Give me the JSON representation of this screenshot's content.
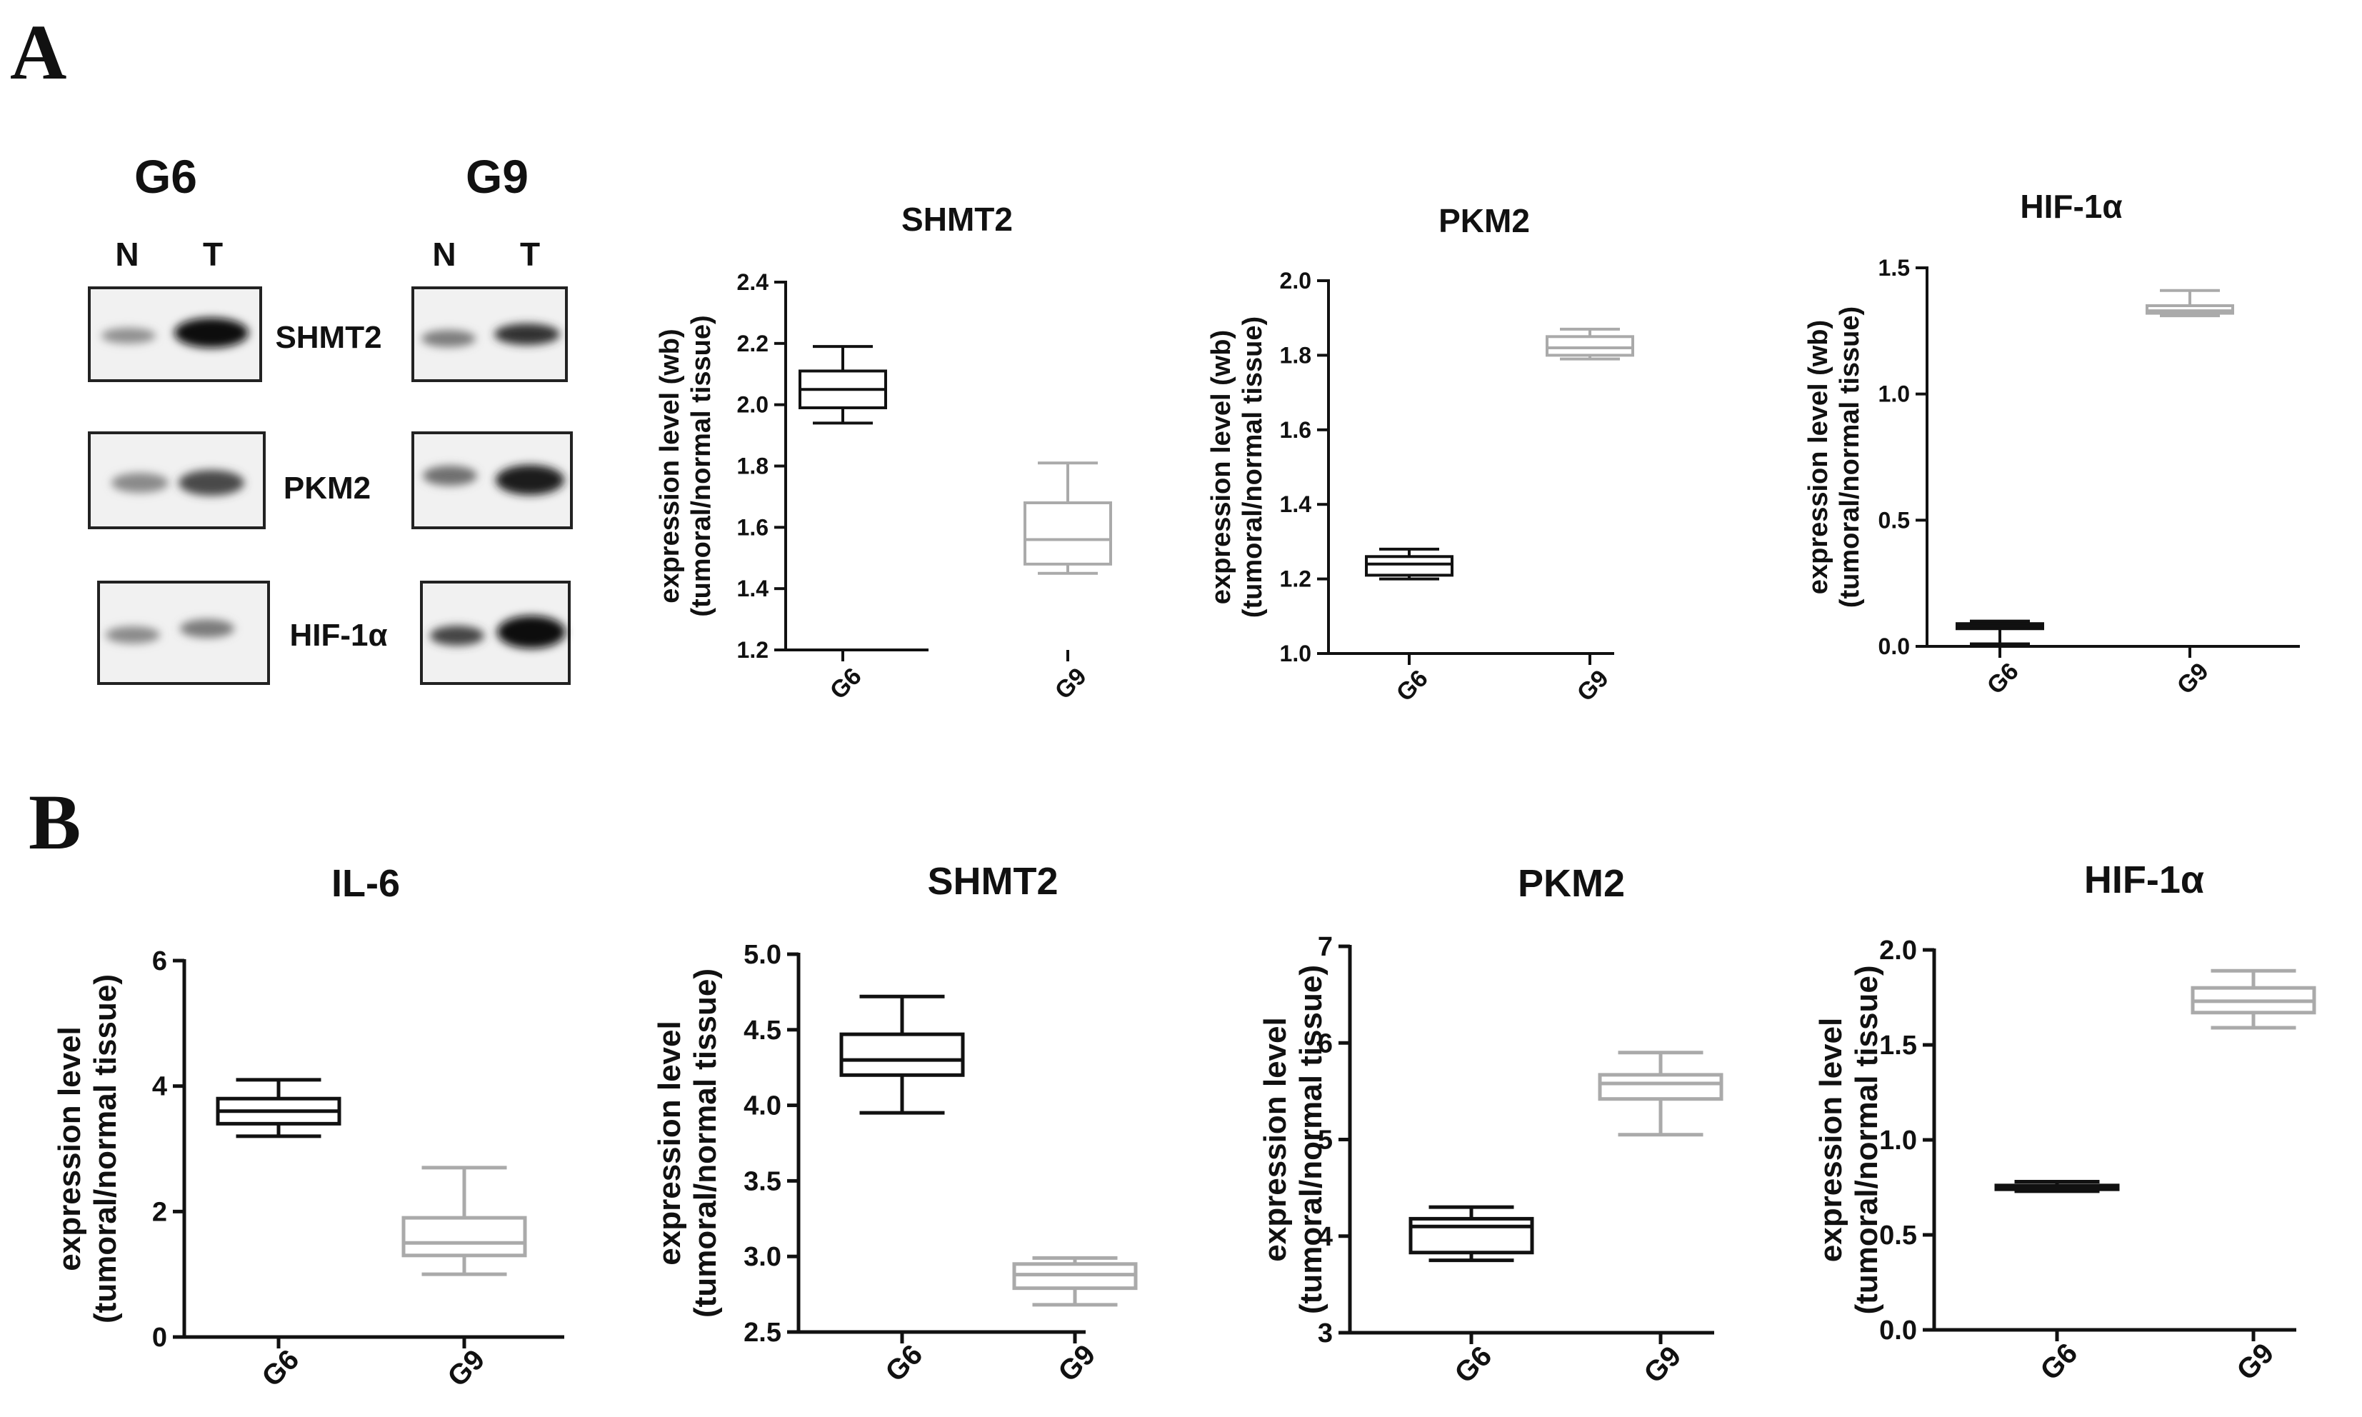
{
  "panels": {
    "a": "A",
    "b": "B"
  },
  "western_blot": {
    "groups": [
      {
        "label": "G6",
        "lanes": [
          "N",
          "T"
        ]
      },
      {
        "label": "G9",
        "lanes": [
          "N",
          "T"
        ]
      }
    ],
    "proteins": [
      "SHMT2",
      "PKM2",
      "HIF-1α"
    ]
  },
  "chart_data": [
    {
      "panel": "A",
      "type": "box",
      "title": "SHMT2",
      "ylabel": [
        "expression level (wb)",
        "(tumoral/normal tissue)"
      ],
      "ylim": [
        1.2,
        2.4
      ],
      "yticks": [
        1.2,
        1.4,
        1.6,
        1.8,
        2.0,
        2.2,
        2.4
      ],
      "ytick_labels": [
        "1.2",
        "1.4",
        "1.6",
        "1.8",
        "2.0",
        "2.2",
        "2.4"
      ],
      "categories": [
        "G6",
        "G9"
      ],
      "series": [
        {
          "name": "G6",
          "color": "#111111",
          "min": 1.94,
          "q1": 1.99,
          "median": 2.05,
          "q3": 2.11,
          "max": 2.19
        },
        {
          "name": "G9",
          "color": "#aaaaaa",
          "min": 1.45,
          "q1": 1.48,
          "median": 1.56,
          "q3": 1.68,
          "max": 1.81
        }
      ]
    },
    {
      "panel": "A",
      "type": "box",
      "title": "PKM2",
      "ylabel": [
        "expression level (wb)",
        "(tumoral/normal tissue)"
      ],
      "ylim": [
        1.0,
        2.0
      ],
      "yticks": [
        1.0,
        1.2,
        1.4,
        1.6,
        1.8,
        2.0
      ],
      "ytick_labels": [
        "1.0",
        "1.2",
        "1.4",
        "1.6",
        "1.8",
        "2.0"
      ],
      "categories": [
        "G6",
        "G9"
      ],
      "series": [
        {
          "name": "G6",
          "color": "#111111",
          "min": 1.2,
          "q1": 1.21,
          "median": 1.24,
          "q3": 1.26,
          "max": 1.28
        },
        {
          "name": "G9",
          "color": "#aaaaaa",
          "min": 1.79,
          "q1": 1.8,
          "median": 1.82,
          "q3": 1.85,
          "max": 1.87
        }
      ]
    },
    {
      "panel": "A",
      "type": "box",
      "title": "HIF-1α",
      "ylabel": [
        "expression level (wb)",
        "(tumoral/normal tissue)"
      ],
      "ylim": [
        0.0,
        1.5
      ],
      "yticks": [
        0.0,
        0.5,
        1.0,
        1.5
      ],
      "ytick_labels": [
        "0.0",
        "0.5",
        "1.0",
        "1.5"
      ],
      "categories": [
        "G6",
        "G9"
      ],
      "series": [
        {
          "name": "G6",
          "color": "#111111",
          "min": 0.01,
          "q1": 0.07,
          "median": 0.08,
          "q3": 0.09,
          "max": 0.1
        },
        {
          "name": "G9",
          "color": "#aaaaaa",
          "min": 1.31,
          "q1": 1.32,
          "median": 1.33,
          "q3": 1.35,
          "max": 1.41
        }
      ]
    },
    {
      "panel": "B",
      "type": "box",
      "title": "IL-6",
      "ylabel": [
        "expression level",
        "(tumoral/normal tissue)"
      ],
      "ylim": [
        0,
        6
      ],
      "yticks": [
        0,
        2,
        4,
        6
      ],
      "ytick_labels": [
        "0",
        "2",
        "4",
        "6"
      ],
      "categories": [
        "G6",
        "G9"
      ],
      "series": [
        {
          "name": "G6",
          "color": "#111111",
          "min": 3.2,
          "q1": 3.4,
          "median": 3.6,
          "q3": 3.8,
          "max": 4.1
        },
        {
          "name": "G9",
          "color": "#aaaaaa",
          "min": 1.0,
          "q1": 1.3,
          "median": 1.5,
          "q3": 1.9,
          "max": 2.7
        }
      ]
    },
    {
      "panel": "B",
      "type": "box",
      "title": "SHMT2",
      "ylabel": [
        "expression    level",
        "(tumoral/normal tissue)"
      ],
      "ylim": [
        2.5,
        5.0
      ],
      "yticks": [
        2.5,
        3.0,
        3.5,
        4.0,
        4.5,
        5.0
      ],
      "ytick_labels": [
        "2.5",
        "3.0",
        "3.5",
        "4.0",
        "4.5",
        "5.0"
      ],
      "categories": [
        "G6",
        "G9"
      ],
      "series": [
        {
          "name": "G6",
          "color": "#111111",
          "min": 3.95,
          "q1": 4.2,
          "median": 4.3,
          "q3": 4.47,
          "max": 4.72
        },
        {
          "name": "G9",
          "color": "#aaaaaa",
          "min": 2.68,
          "q1": 2.79,
          "median": 2.88,
          "q3": 2.95,
          "max": 2.99
        }
      ]
    },
    {
      "panel": "B",
      "type": "box",
      "title": "PKM2",
      "ylabel": [
        "expression    level",
        "(tumoral/normal tissue)"
      ],
      "ylim": [
        3,
        7
      ],
      "yticks": [
        3,
        4,
        5,
        6,
        7
      ],
      "ytick_labels": [
        "3",
        "4",
        "5",
        "6",
        "7"
      ],
      "categories": [
        "G6",
        "G9"
      ],
      "series": [
        {
          "name": "G6",
          "color": "#111111",
          "min": 3.75,
          "q1": 3.83,
          "median": 4.1,
          "q3": 4.18,
          "max": 4.3
        },
        {
          "name": "G9",
          "color": "#aaaaaa",
          "min": 5.05,
          "q1": 5.42,
          "median": 5.58,
          "q3": 5.67,
          "max": 5.9
        }
      ]
    },
    {
      "panel": "B",
      "type": "box",
      "title": "HIF-1α",
      "ylabel": [
        "expression    level",
        "(tumoral/normal tissue)"
      ],
      "ylim": [
        0.0,
        2.0
      ],
      "yticks": [
        0.0,
        0.5,
        1.0,
        1.5,
        2.0
      ],
      "ytick_labels": [
        "0.0",
        "0.5",
        "1.0",
        "1.5",
        "2.0"
      ],
      "categories": [
        "G6",
        "G9"
      ],
      "series": [
        {
          "name": "G6",
          "color": "#111111",
          "min": 0.73,
          "q1": 0.74,
          "median": 0.75,
          "q3": 0.76,
          "max": 0.78
        },
        {
          "name": "G9",
          "color": "#aaaaaa",
          "min": 1.59,
          "q1": 1.67,
          "median": 1.73,
          "q3": 1.8,
          "max": 1.89
        }
      ]
    }
  ]
}
